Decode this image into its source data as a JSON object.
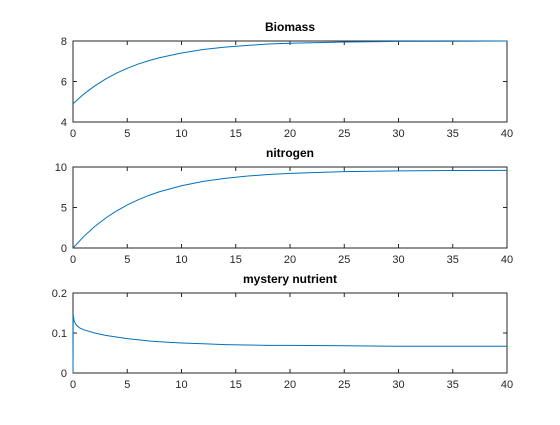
{
  "chart_data": [
    {
      "type": "line",
      "title": "Biomass",
      "x": [
        0,
        1,
        2,
        3,
        4,
        5,
        6,
        7,
        8,
        10,
        12,
        14,
        16,
        18,
        20,
        25,
        30,
        35,
        40
      ],
      "series": [
        {
          "color": "#0072bd",
          "values": [
            4.9,
            5.38,
            5.78,
            6.12,
            6.41,
            6.65,
            6.86,
            7.03,
            7.18,
            7.41,
            7.58,
            7.7,
            7.78,
            7.85,
            7.89,
            7.95,
            7.98,
            7.99,
            8.0
          ]
        }
      ],
      "xlim": [
        0,
        40
      ],
      "xticks": [
        0,
        5,
        10,
        15,
        20,
        25,
        30,
        35,
        40
      ],
      "ylim": [
        4,
        8
      ],
      "yticks": [
        4,
        6,
        8
      ]
    },
    {
      "type": "line",
      "title": "nitrogen",
      "x": [
        0,
        1,
        2,
        3,
        4,
        5,
        6,
        7,
        8,
        10,
        12,
        14,
        16,
        18,
        20,
        25,
        30,
        35,
        40
      ],
      "series": [
        {
          "color": "#0072bd",
          "values": [
            0,
            1.43,
            2.65,
            3.69,
            4.56,
            5.32,
            5.95,
            6.5,
            6.96,
            7.69,
            8.22,
            8.59,
            8.87,
            9.07,
            9.22,
            9.43,
            9.52,
            9.57,
            9.58
          ]
        }
      ],
      "xlim": [
        0,
        40
      ],
      "xticks": [
        0,
        5,
        10,
        15,
        20,
        25,
        30,
        35,
        40
      ],
      "ylim": [
        0,
        10
      ],
      "yticks": [
        0,
        5,
        10
      ]
    },
    {
      "type": "line",
      "title": "mystery nutrient",
      "x": [
        0,
        0.02,
        0.1,
        0.3,
        0.6,
        1,
        2,
        3,
        4,
        5,
        6,
        7,
        8,
        10,
        12,
        14,
        16,
        18,
        20,
        25,
        30,
        35,
        40
      ],
      "series": [
        {
          "color": "#0072bd",
          "values": [
            0,
            0.145,
            0.13,
            0.12,
            0.113,
            0.108,
            0.1,
            0.094,
            0.09,
            0.086,
            0.083,
            0.08,
            0.078,
            0.075,
            0.073,
            0.071,
            0.07,
            0.069,
            0.069,
            0.068,
            0.067,
            0.067,
            0.067
          ]
        }
      ],
      "xlim": [
        0,
        40
      ],
      "xticks": [
        0,
        5,
        10,
        15,
        20,
        25,
        30,
        35,
        40
      ],
      "ylim": [
        0,
        0.2
      ],
      "yticks": [
        0,
        0.1,
        0.2
      ]
    }
  ]
}
